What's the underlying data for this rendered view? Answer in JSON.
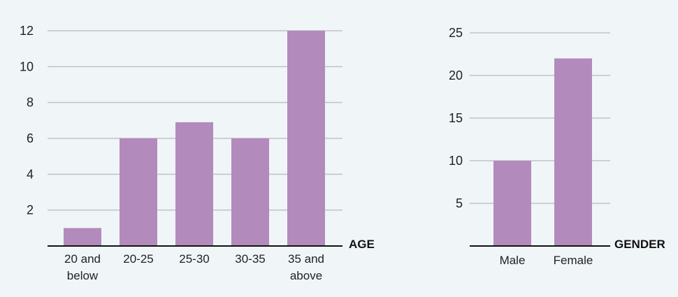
{
  "colors": {
    "background": "#f0f5f8",
    "bar": "#b38abc",
    "grid": "#bfc3c8",
    "axis": "#111111",
    "text": "#222222"
  },
  "chart_data": [
    {
      "type": "bar",
      "categories": [
        [
          "20 and",
          "below"
        ],
        [
          "20-25"
        ],
        [
          "25-30"
        ],
        [
          "30-35"
        ],
        [
          "35 and",
          "above"
        ]
      ],
      "values": [
        1,
        6,
        6.9,
        6,
        12
      ],
      "xlabel": "AGE",
      "ylabel": "",
      "ylim": [
        0,
        12
      ],
      "yticks": [
        2,
        4,
        6,
        8,
        10,
        12
      ],
      "grid": true
    },
    {
      "type": "bar",
      "categories": [
        [
          "Male"
        ],
        [
          "Female"
        ]
      ],
      "values": [
        10,
        22
      ],
      "xlabel": "GENDER",
      "ylabel": "",
      "ylim": [
        0,
        25
      ],
      "yticks": [
        5,
        10,
        15,
        20,
        25
      ],
      "grid": true
    }
  ]
}
